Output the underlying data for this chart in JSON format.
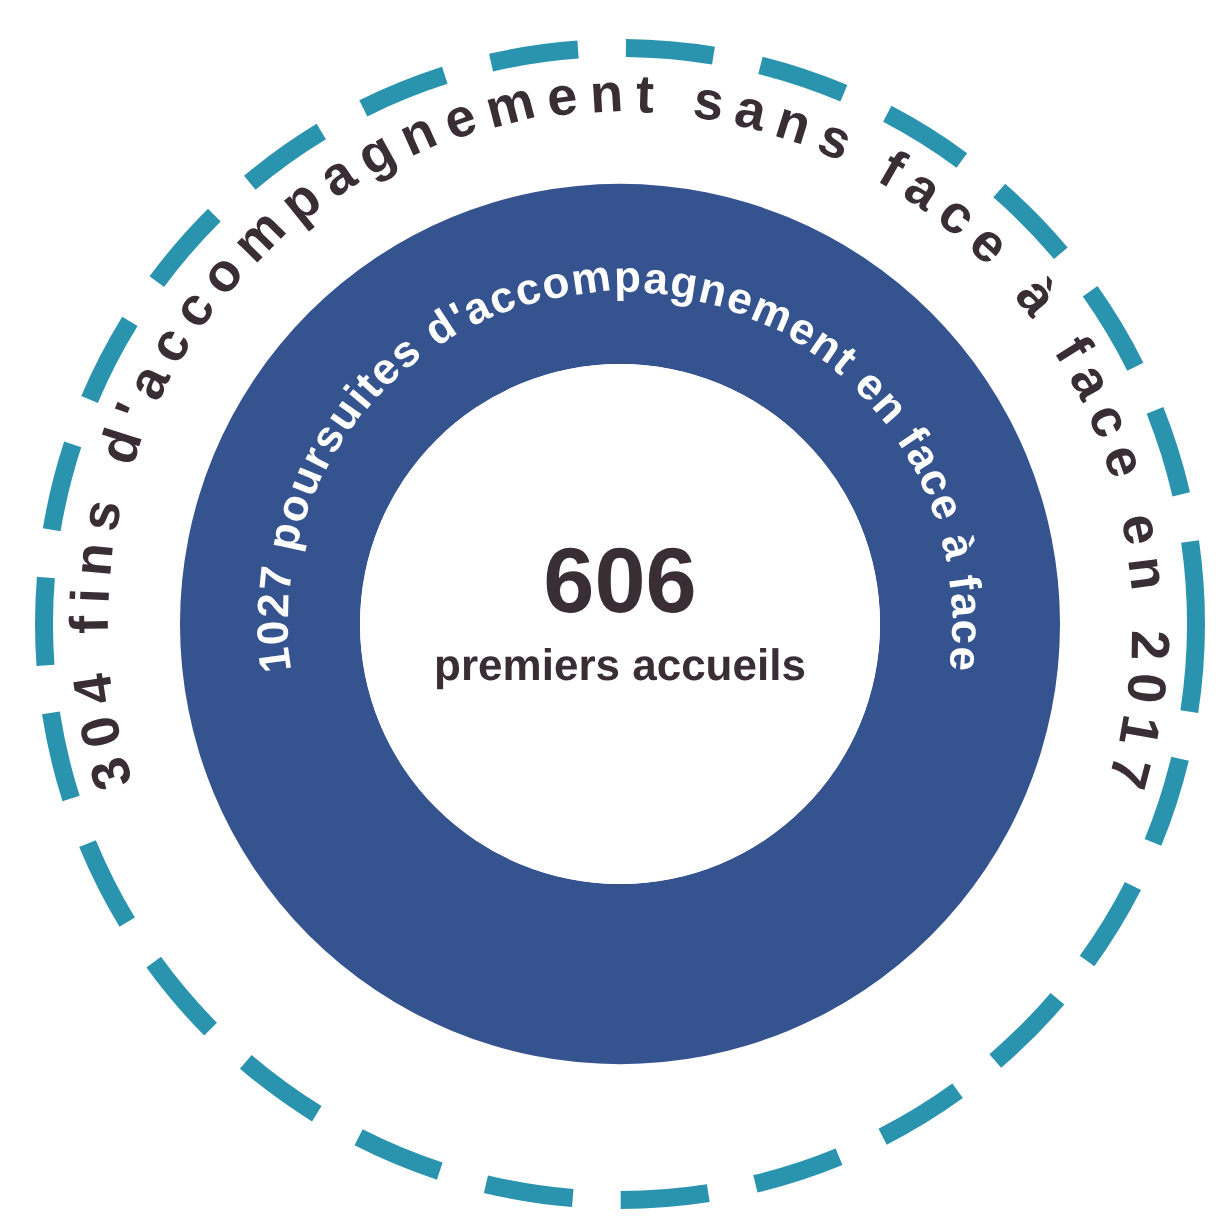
{
  "chart_data": {
    "type": "other",
    "categories": [
      "premiers accueils",
      "poursuites d'accompagnement en face à face",
      "fins d'accompagnement sans face à face en 2017"
    ],
    "values": [
      606,
      1027,
      304
    ],
    "colors": [
      "#ffffff",
      "#34538f",
      "#2a93ae"
    ],
    "data_labels": true
  }
}
